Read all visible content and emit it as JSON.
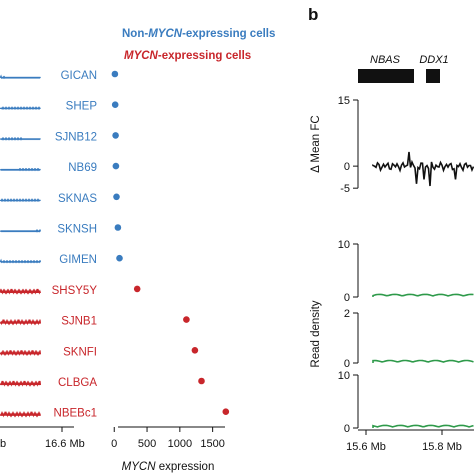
{
  "legend": {
    "non_expressing_prefix": "Non-",
    "non_expressing_gene": "MYCN",
    "non_expressing_suffix": "-expressing cells",
    "expressing_gene": "MYCN",
    "expressing_suffix": "-expressing cells"
  },
  "panel_b_letter": "b",
  "colors": {
    "non_expressing": "#3a7cbf",
    "expressing": "#c8262b",
    "read_density_track": "#2e9a4a",
    "axis": "#111111"
  },
  "chart_data": [
    {
      "type": "scatter",
      "panel": "a-right",
      "categories": [
        "GICAN",
        "SHEP",
        "SJNB12",
        "NB69",
        "SKNAS",
        "SKNSH",
        "GIMEN",
        "SHSY5Y",
        "SJNB1",
        "SKNFI",
        "CLBGA",
        "NBEBc1"
      ],
      "groups": [
        "non",
        "non",
        "non",
        "non",
        "non",
        "non",
        "non",
        "exp",
        "exp",
        "exp",
        "exp",
        "exp"
      ],
      "values": [
        10,
        15,
        20,
        25,
        35,
        55,
        80,
        350,
        1100,
        1230,
        1330,
        1700
      ],
      "xlabel_gene": "MYCN",
      "xlabel_suffix": " expression",
      "xticks": [
        0,
        500,
        1000,
        1500
      ],
      "xlim": [
        -80,
        1780
      ],
      "left_axis_ticks": [
        "b",
        "16.6 Mb"
      ]
    },
    {
      "type": "line",
      "panel": "b",
      "genes": [
        "NBAS",
        "DDX1"
      ],
      "top_track": {
        "ylabel": "Δ Mean FC",
        "yticks": [
          15,
          0,
          -5
        ],
        "ylim": [
          -7,
          15
        ]
      },
      "density_tracks": [
        {
          "yticks": [
            10,
            0
          ],
          "ylim": [
            0,
            10
          ]
        },
        {
          "yticks": [
            2,
            0
          ],
          "ylim": [
            0,
            2
          ]
        },
        {
          "yticks": [
            10,
            0
          ],
          "ylim": [
            0,
            10
          ]
        }
      ],
      "ylabel_density": "Read density",
      "xticks": [
        "15.6 Mb",
        "15.8 Mb"
      ]
    }
  ]
}
